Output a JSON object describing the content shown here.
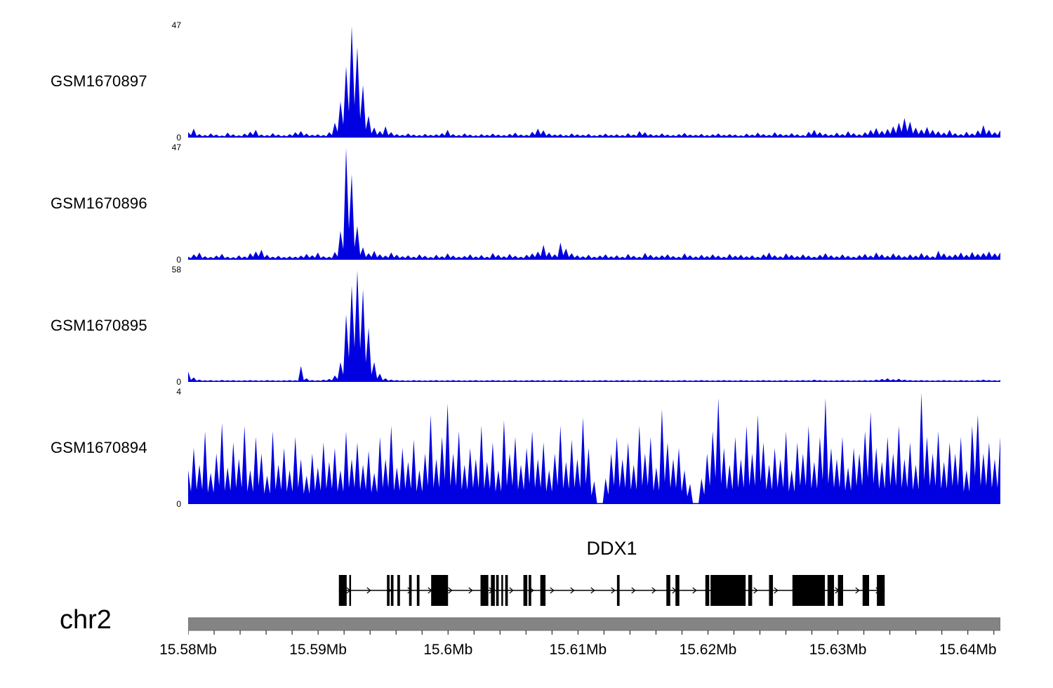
{
  "chart_data": {
    "type": "area",
    "title": "ChIP-seq coverage tracks with DDX1 gene model",
    "signal_color": "#0000e0",
    "axis": {
      "chromosome": "chr2",
      "unit": "Mb",
      "start_mb": 15.58,
      "end_mb": 15.6425,
      "major_ticks_mb": [
        15.58,
        15.59,
        15.6,
        15.61,
        15.62,
        15.63,
        15.64
      ],
      "tick_labels": [
        "15.58Mb",
        "15.59Mb",
        "15.6Mb",
        "15.61Mb",
        "15.62Mb",
        "15.63Mb",
        "15.64Mb"
      ],
      "minor_tick_step_mb": 0.002,
      "bar_color": "#848484"
    },
    "tracks": [
      {
        "name": "GSM1670897",
        "ymax": 47,
        "ymin": 0,
        "ymax_label": "47",
        "ymin_label": "0",
        "values": [
          2,
          3.5,
          1.2,
          0.8,
          1.5,
          1,
          0.6,
          1.8,
          1.1,
          0.7,
          1.4,
          2.2,
          3,
          1,
          0.8,
          1.6,
          1,
          0.7,
          1.2,
          2,
          2.5,
          1.4,
          0.9,
          1.1,
          0.8,
          2,
          6,
          15,
          30,
          47,
          38,
          22,
          9,
          4,
          2.5,
          4.5,
          2,
          1.2,
          0.9,
          1.5,
          1,
          0.8,
          1.3,
          0.9,
          1.1,
          1.6,
          3,
          1.2,
          0.8,
          1.5,
          1,
          0.7,
          1.2,
          0.9,
          1.4,
          1,
          0.8,
          1.3,
          1.8,
          1,
          0.9,
          2.2,
          3.5,
          2.8,
          1.5,
          1,
          1.2,
          0.8,
          1.5,
          1.1,
          0.9,
          1.3,
          0.7,
          1,
          1.4,
          0.9,
          1.1,
          0.8,
          1.6,
          1,
          2.5,
          2,
          1.2,
          0.9,
          1.5,
          1,
          0.8,
          1.2,
          1.7,
          1,
          0.9,
          1.3,
          0.8,
          1.1,
          1.5,
          0.9,
          1.2,
          1,
          0.7,
          1.4,
          1,
          1.8,
          1.2,
          0.9,
          2,
          1.3,
          1,
          1.6,
          1.1,
          0.8,
          2.2,
          3,
          2,
          1.4,
          1,
          1.8,
          1.2,
          2.4,
          1.6,
          1.1,
          2,
          3,
          3.8,
          2.6,
          3.4,
          4.5,
          6,
          8,
          6.5,
          4,
          3.2,
          4.2,
          3,
          2.4,
          1.8,
          3,
          1.6,
          1.2,
          2.2,
          1.5,
          2.8,
          5,
          3,
          2,
          2.8
        ]
      },
      {
        "name": "GSM1670896",
        "ymax": 47,
        "ymin": 0,
        "ymax_label": "47",
        "ymin_label": "0",
        "values": [
          1,
          2,
          2.8,
          1.2,
          0.9,
          1.5,
          2.2,
          1,
          0.8,
          1.6,
          1.1,
          2.5,
          3.2,
          4,
          1.8,
          1,
          1.4,
          0.9,
          1.2,
          1,
          1.5,
          2.2,
          1.6,
          2.8,
          1.2,
          1,
          3,
          12,
          47,
          36,
          14,
          5,
          2.5,
          3.5,
          2,
          1.5,
          2.8,
          1.8,
          1.2,
          1.6,
          1,
          2,
          1.4,
          0.9,
          1.8,
          1.2,
          2.4,
          1.5,
          1,
          1.3,
          2,
          1.1,
          1.7,
          1,
          2.6,
          1.8,
          1.2,
          2.2,
          1.4,
          1,
          1.8,
          2.4,
          3.2,
          6,
          3,
          2,
          7,
          4.5,
          2.5,
          1.6,
          1.2,
          1.8,
          1,
          1.5,
          2,
          1.2,
          1.6,
          1,
          2.2,
          1.4,
          1,
          2.6,
          1.8,
          1.2,
          1.6,
          2,
          1.3,
          1,
          2.4,
          1.6,
          1.1,
          1.8,
          1.3,
          2,
          1.5,
          1,
          2.2,
          1.4,
          1.8,
          1.2,
          1.6,
          1,
          2,
          2.8,
          1.6,
          1.2,
          2.4,
          1.8,
          1.3,
          2,
          1.5,
          1,
          1.8,
          2.5,
          1.6,
          1.2,
          2,
          1.4,
          1,
          1.7,
          2.2,
          1.5,
          2.8,
          2,
          1.4,
          2.4,
          1.8,
          1.2,
          2,
          1.5,
          2.6,
          1.8,
          1.2,
          3.5,
          2.4,
          1.6,
          2,
          2.8,
          1.8,
          3,
          2.2,
          2.6,
          3.2,
          2.4,
          2.8
        ]
      },
      {
        "name": "GSM1670895",
        "ymax": 58,
        "ymin": 0,
        "ymax_label": "58",
        "ymin_label": "0",
        "values": [
          5,
          2,
          0.8,
          0.5,
          0.6,
          0.4,
          0.7,
          0.5,
          0.6,
          0.4,
          0.5,
          0.6,
          0.5,
          0.4,
          0.6,
          0.5,
          0.4,
          0.5,
          0.6,
          0.5,
          8,
          1.5,
          0.6,
          0.5,
          0.8,
          1.2,
          3,
          10,
          35,
          50,
          58,
          48,
          28,
          10,
          4,
          1.5,
          0.8,
          0.6,
          0.5,
          0.4,
          0.6,
          0.5,
          0.4,
          0.5,
          0.6,
          0.4,
          0.5,
          0.6,
          0.5,
          0.4,
          0.5,
          0.6,
          0.4,
          0.5,
          0.6,
          0.5,
          0.4,
          0.5,
          0.6,
          0.4,
          0.5,
          0.6,
          0.5,
          0.6,
          0.4,
          0.5,
          0.6,
          0.5,
          0.4,
          0.5,
          0.6,
          0.4,
          0.5,
          0.5,
          0.6,
          0.4,
          0.5,
          0.6,
          0.5,
          0.4,
          0.6,
          0.5,
          0.4,
          0.5,
          0.6,
          0.5,
          0.4,
          0.5,
          0.6,
          0.4,
          0.5,
          0.6,
          0.5,
          0.4,
          0.5,
          0.6,
          0.5,
          0.4,
          0.6,
          0.5,
          0.4,
          0.5,
          0.6,
          0.5,
          0.4,
          0.5,
          0.6,
          0.4,
          0.5,
          0.6,
          0.5,
          0.8,
          0.6,
          0.5,
          0.4,
          0.5,
          0.6,
          0.5,
          0.4,
          0.5,
          0.6,
          0.5,
          0.8,
          1.2,
          1.5,
          1,
          1.3,
          0.8,
          0.6,
          0.5,
          0.6,
          0.5,
          0.4,
          0.5,
          0.6,
          0.5,
          0.4,
          0.6,
          0.5,
          0.4,
          0.6,
          0.8,
          0.6,
          0.5,
          0.6
        ]
      },
      {
        "name": "GSM1670894",
        "ymax": 4,
        "ymin": 0,
        "ymax_label": "4",
        "ymin_label": "0",
        "values": [
          1.2,
          2,
          1.4,
          2.6,
          1.1,
          1.8,
          2.9,
          1.3,
          2.2,
          1.6,
          2.8,
          1.2,
          2.4,
          1.8,
          1,
          2.6,
          1.4,
          2,
          1.2,
          2.4,
          1.6,
          1,
          1.8,
          1.3,
          2.2,
          1.5,
          2,
          1.2,
          2.6,
          1.6,
          2.2,
          1.4,
          1.9,
          1.1,
          2.4,
          1.6,
          2.8,
          1.3,
          2,
          1.5,
          2.3,
          1.2,
          1.8,
          3.2,
          1.6,
          2.4,
          3.6,
          1.8,
          2.6,
          1.4,
          2,
          1.6,
          2.8,
          1.5,
          2.2,
          1.2,
          3,
          1.8,
          2.4,
          1.4,
          2,
          2.6,
          1.6,
          2.2,
          1.2,
          1.8,
          2.8,
          1.5,
          2.3,
          1.6,
          3.1,
          2,
          0.8,
          0,
          0.9,
          1.8,
          2.4,
          1.6,
          2.2,
          1.4,
          2.8,
          1.8,
          2.4,
          1.3,
          3.4,
          2.2,
          1.6,
          2,
          1.2,
          0.7,
          0,
          0.9,
          1.8,
          2.6,
          3.8,
          2,
          1.4,
          2.4,
          1.6,
          2.8,
          1.8,
          3.2,
          2.2,
          1.4,
          2,
          1.6,
          2.6,
          1.2,
          2.2,
          1.8,
          2.8,
          1.5,
          2.4,
          3.8,
          2,
          1.6,
          2.4,
          1.3,
          2,
          1.8,
          2.6,
          3.3,
          2,
          1.5,
          2.4,
          1.8,
          2.8,
          1.6,
          2.2,
          1.4,
          4,
          2.4,
          1.8,
          2.6,
          1.5,
          2.2,
          1.8,
          2.4,
          1.2,
          2.8,
          3.2,
          1.8,
          2.2,
          1.6,
          2.4
        ]
      }
    ],
    "gene": {
      "name": "DDX1",
      "strand": "+",
      "color": "#000000",
      "start_mb": 15.5916,
      "end_mb": 15.6336,
      "exons_mb": [
        [
          15.5916,
          15.5922
        ],
        [
          15.5924,
          15.5925
        ],
        [
          15.5953,
          15.5955
        ],
        [
          15.5956,
          15.5958
        ],
        [
          15.5961,
          15.5963
        ],
        [
          15.597,
          15.5972
        ],
        [
          15.5976,
          15.5978
        ],
        [
          15.5987,
          15.6
        ],
        [
          15.6025,
          15.6031
        ],
        [
          15.6033,
          15.6036
        ],
        [
          15.6037,
          15.6039
        ],
        [
          15.6041,
          15.6042
        ],
        [
          15.6044,
          15.6046
        ],
        [
          15.6058,
          15.6061
        ],
        [
          15.6062,
          15.6064
        ],
        [
          15.6071,
          15.6075
        ],
        [
          15.613,
          15.6132
        ],
        [
          15.6168,
          15.6171
        ],
        [
          15.6175,
          15.6178
        ],
        [
          15.6198,
          15.6201
        ],
        [
          15.6202,
          15.6229
        ],
        [
          15.6231,
          15.6234
        ],
        [
          15.6247,
          15.625
        ],
        [
          15.6265,
          15.629
        ],
        [
          15.6292,
          15.6297
        ],
        [
          15.63,
          15.6304
        ],
        [
          15.6319,
          15.6324
        ],
        [
          15.633,
          15.6336
        ]
      ]
    }
  }
}
